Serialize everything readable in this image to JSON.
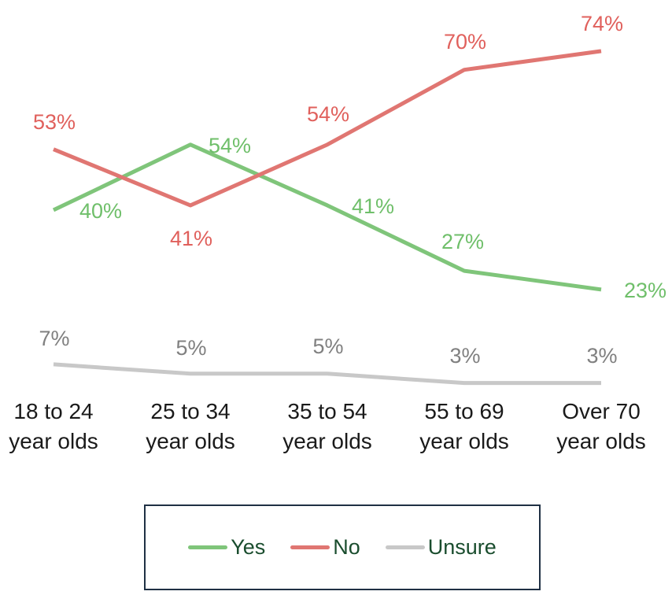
{
  "chart_data": {
    "type": "line",
    "title": "",
    "xlabel": "",
    "ylabel": "",
    "categories": [
      [
        "18 to 24",
        "year olds"
      ],
      [
        "25 to 34",
        "year olds"
      ],
      [
        "35 to 54",
        "year olds"
      ],
      [
        "55 to 69",
        "year olds"
      ],
      [
        "Over 70",
        "year olds"
      ]
    ],
    "series": [
      {
        "name": "Yes",
        "values": [
          40,
          54,
          41,
          27,
          23
        ],
        "labels": [
          "40%",
          "54%",
          "41%",
          "27%",
          "23%"
        ],
        "color": "#7fc57a"
      },
      {
        "name": "No",
        "values": [
          53,
          41,
          54,
          70,
          74
        ],
        "labels": [
          "53%",
          "41%",
          "54%",
          "70%",
          "74%"
        ],
        "color": "#e07672"
      },
      {
        "name": "Unsure",
        "values": [
          7,
          5,
          5,
          3,
          3
        ],
        "labels": [
          "7%",
          "5%",
          "5%",
          "3%",
          "3%"
        ],
        "color": "#c8c8c8"
      }
    ],
    "ylim": [
      0,
      80
    ],
    "grid": false,
    "legend": "bottom",
    "label_colors": {
      "Yes": "#6fbf6a",
      "No": "#e0605c",
      "Unsure": "#808080"
    }
  },
  "legend": {
    "items": [
      {
        "name": "Yes",
        "color": "#7fc57a"
      },
      {
        "name": "No",
        "color": "#e07672"
      },
      {
        "name": "Unsure",
        "color": "#c8c8c8"
      }
    ]
  }
}
